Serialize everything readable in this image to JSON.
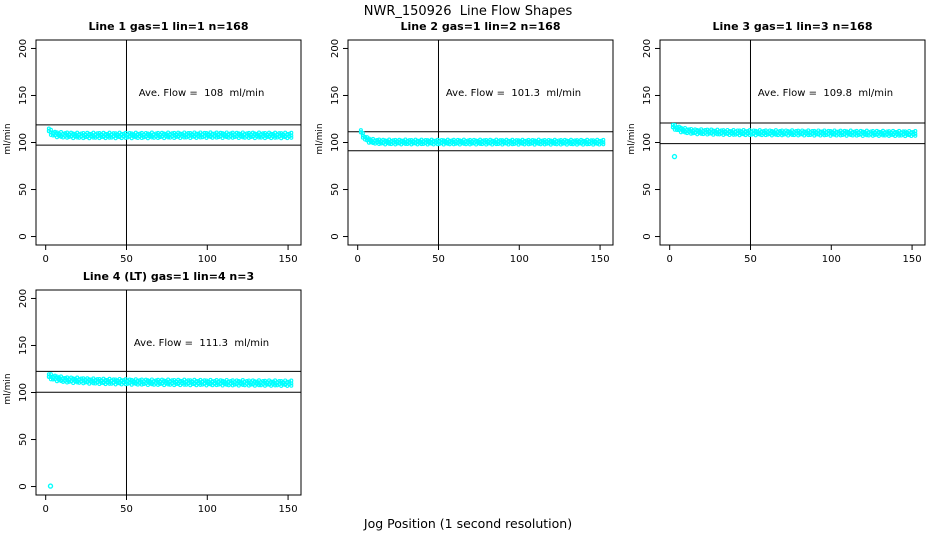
{
  "figure": {
    "title": "NWR_150926  Line Flow Shapes",
    "xlabel": "Jog Position (1 second resolution)",
    "background_color": "#FFFFFF",
    "marker_color": "#00FFFF",
    "axis_color": "#000000"
  },
  "chart_data": [
    {
      "type": "scatter",
      "title": "Line 1 gas=1 lin=1 n=168",
      "annotation": "Ave. Flow =  108  ml/min",
      "ave_flow_ml_min": 108,
      "n": 168,
      "ylabel": "ml/min",
      "xlim": [
        -6,
        158
      ],
      "ylim": [
        -9,
        209
      ],
      "xticks": [
        0,
        50,
        100,
        150
      ],
      "yticks": [
        0,
        50,
        100,
        150,
        200
      ],
      "grid": false,
      "vline_x": 50,
      "hlines": [
        97.2,
        118.8
      ],
      "band": {
        "x_start": 2,
        "x_end": 152,
        "halfwidth": 3.2,
        "profile": [
          [
            2,
            113
          ],
          [
            3,
            111
          ],
          [
            5,
            109
          ],
          [
            10,
            108
          ],
          [
            20,
            107.5
          ],
          [
            60,
            107.5
          ],
          [
            100,
            107.8
          ],
          [
            152,
            107.5
          ]
        ]
      },
      "outliers": []
    },
    {
      "type": "scatter",
      "title": "Line 2 gas=1 lin=2 n=168",
      "annotation": "Ave. Flow =  101.3  ml/min",
      "ave_flow_ml_min": 101.3,
      "n": 168,
      "ylabel": "ml/min",
      "xlim": [
        -6,
        158
      ],
      "ylim": [
        -9,
        209
      ],
      "xticks": [
        0,
        50,
        100,
        150
      ],
      "yticks": [
        0,
        50,
        100,
        150,
        200
      ],
      "grid": false,
      "vline_x": 50,
      "hlines": [
        91.2,
        111.4
      ],
      "band": {
        "x_start": 2,
        "x_end": 152,
        "halfwidth": 2.8,
        "profile": [
          [
            2,
            111.5
          ],
          [
            3,
            108
          ],
          [
            5,
            104
          ],
          [
            8,
            101.5
          ],
          [
            15,
            100.5
          ],
          [
            80,
            100.4
          ],
          [
            152,
            100.3
          ]
        ]
      },
      "outliers": []
    },
    {
      "type": "scatter",
      "title": "Line 3 gas=1 lin=3 n=168",
      "annotation": "Ave. Flow =  109.8  ml/min",
      "ave_flow_ml_min": 109.8,
      "n": 168,
      "ylabel": "ml/min",
      "xlim": [
        -6,
        158
      ],
      "ylim": [
        -9,
        209
      ],
      "xticks": [
        0,
        50,
        100,
        150
      ],
      "yticks": [
        0,
        50,
        100,
        150,
        200
      ],
      "grid": false,
      "vline_x": 50,
      "hlines": [
        98.8,
        120.8
      ],
      "band": {
        "x_start": 2,
        "x_end": 152,
        "halfwidth": 3.0,
        "profile": [
          [
            2,
            117
          ],
          [
            4,
            115.5
          ],
          [
            8,
            113
          ],
          [
            15,
            111.5
          ],
          [
            40,
            110.5
          ],
          [
            100,
            110
          ],
          [
            152,
            109.5
          ]
        ]
      },
      "outliers": [
        [
          3,
          85
        ]
      ]
    },
    {
      "type": "scatter",
      "title": "Line 4 (LT) gas=1 lin=4 n=3",
      "annotation": "Ave. Flow =  111.3  ml/min",
      "ave_flow_ml_min": 111.3,
      "n": 3,
      "ylabel": "ml/min",
      "xlim": [
        -6,
        158
      ],
      "ylim": [
        -9,
        209
      ],
      "xticks": [
        0,
        50,
        100,
        150
      ],
      "yticks": [
        0,
        50,
        100,
        150,
        200
      ],
      "grid": false,
      "vline_x": 50,
      "hlines": [
        100.2,
        122.4
      ],
      "band": {
        "x_start": 2,
        "x_end": 152,
        "halfwidth": 3.2,
        "profile": [
          [
            2,
            117.5
          ],
          [
            5,
            115.5
          ],
          [
            12,
            113.5
          ],
          [
            30,
            112
          ],
          [
            60,
            111
          ],
          [
            100,
            110.5
          ],
          [
            152,
            109.8
          ]
        ]
      },
      "outliers": [
        [
          3,
          0.5
        ]
      ]
    }
  ]
}
